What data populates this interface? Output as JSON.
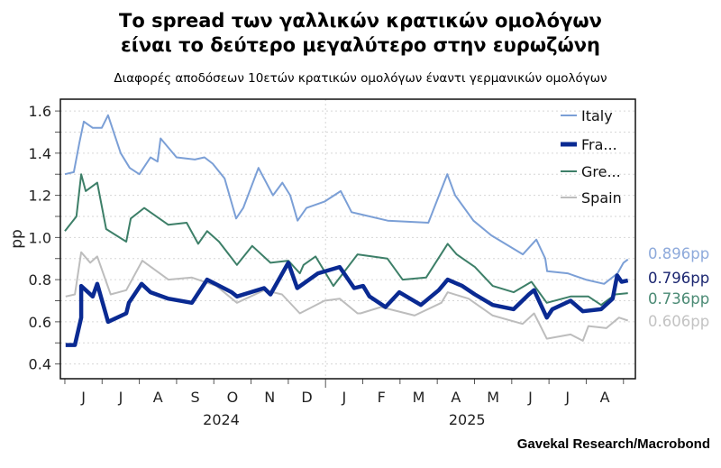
{
  "title_line1": "Το spread των γαλλικών κρατικών ομολόγων",
  "title_line2": "είναι το δεύτερο μεγαλύτερο στην ευρωζώνη",
  "subtitle": "Διαφορές αποδόσεων 10ετών κρατικών ομολόγων έναντι γερμανικών ομολόγων",
  "source": "Gavekal Research/Macrobond",
  "chart_data": {
    "type": "line",
    "title": "Το spread των γαλλικών κρατικών ομολόγων είναι το δεύτερο μεγαλύτερο στην ευρωζώνη",
    "xlabel": "",
    "ylabel": "pp",
    "x_unit": "months since 2024-06-01",
    "xlim": [
      -0.12,
      15.32
    ],
    "ylim": [
      0.33,
      1.656
    ],
    "yticks": [
      0.4,
      0.6,
      0.8,
      1.0,
      1.2,
      1.4,
      1.6
    ],
    "ytick_labels": [
      "0.4",
      "0.6",
      "0.8",
      "1.0",
      "1.2",
      "1.4",
      "1.6"
    ],
    "grid": true,
    "month_labels": [
      "J",
      "J",
      "A",
      "S",
      "O",
      "N",
      "D",
      "J",
      "F",
      "M",
      "A",
      "M",
      "J",
      "J",
      "A"
    ],
    "year_labels": [
      {
        "label": "2024",
        "month": 4.2
      },
      {
        "label": "2025",
        "month": 10.8
      }
    ],
    "legend_position": "top-right",
    "series": [
      {
        "name": "Italy",
        "legend": "Italy",
        "color": "#7b9fd6",
        "width": 2,
        "end_label": "0.896pp",
        "end_color": "#8eaadb",
        "points": [
          [
            0,
            1.3
          ],
          [
            0.24,
            1.31
          ],
          [
            0.39,
            1.45
          ],
          [
            0.51,
            1.55
          ],
          [
            0.75,
            1.52
          ],
          [
            0.99,
            1.52
          ],
          [
            1.16,
            1.58
          ],
          [
            1.5,
            1.4
          ],
          [
            1.74,
            1.33
          ],
          [
            2.0,
            1.3
          ],
          [
            2.3,
            1.38
          ],
          [
            2.49,
            1.36
          ],
          [
            2.57,
            1.47
          ],
          [
            3.0,
            1.38
          ],
          [
            3.49,
            1.37
          ],
          [
            3.75,
            1.38
          ],
          [
            3.97,
            1.35
          ],
          [
            4.29,
            1.28
          ],
          [
            4.6,
            1.09
          ],
          [
            4.79,
            1.14
          ],
          [
            5.2,
            1.33
          ],
          [
            5.59,
            1.2
          ],
          [
            5.84,
            1.26
          ],
          [
            6.05,
            1.2
          ],
          [
            6.25,
            1.08
          ],
          [
            6.49,
            1.14
          ],
          [
            6.97,
            1.17
          ],
          [
            7.41,
            1.22
          ],
          [
            7.7,
            1.12
          ],
          [
            7.94,
            1.11
          ],
          [
            8.67,
            1.08
          ],
          [
            9.76,
            1.07
          ],
          [
            10.27,
            1.3
          ],
          [
            10.48,
            1.2
          ],
          [
            10.97,
            1.08
          ],
          [
            11.45,
            1.01
          ],
          [
            12.3,
            0.92
          ],
          [
            12.66,
            0.99
          ],
          [
            12.9,
            0.9
          ],
          [
            12.95,
            0.84
          ],
          [
            13.5,
            0.83
          ],
          [
            13.99,
            0.8
          ],
          [
            14.48,
            0.78
          ],
          [
            14.84,
            0.83
          ],
          [
            15.0,
            0.88
          ],
          [
            15.12,
            0.896
          ]
        ]
      },
      {
        "name": "France",
        "legend": "Fra...",
        "color": "#0a2a92",
        "width": 4.5,
        "end_label": "0.796pp",
        "end_color": "#1b2670",
        "points": [
          [
            0.02,
            0.49
          ],
          [
            0.27,
            0.49
          ],
          [
            0.44,
            0.62
          ],
          [
            0.44,
            0.77
          ],
          [
            0.75,
            0.72
          ],
          [
            0.87,
            0.78
          ],
          [
            1.16,
            0.6
          ],
          [
            1.65,
            0.64
          ],
          [
            1.72,
            0.69
          ],
          [
            2.06,
            0.78
          ],
          [
            2.3,
            0.74
          ],
          [
            2.78,
            0.71
          ],
          [
            3.41,
            0.69
          ],
          [
            3.82,
            0.8
          ],
          [
            4.48,
            0.74
          ],
          [
            4.62,
            0.72
          ],
          [
            5.35,
            0.76
          ],
          [
            5.52,
            0.73
          ],
          [
            6.0,
            0.88
          ],
          [
            6.24,
            0.76
          ],
          [
            6.8,
            0.83
          ],
          [
            7.38,
            0.86
          ],
          [
            7.77,
            0.76
          ],
          [
            8.01,
            0.77
          ],
          [
            8.18,
            0.72
          ],
          [
            8.61,
            0.67
          ],
          [
            8.98,
            0.74
          ],
          [
            9.56,
            0.68
          ],
          [
            10.04,
            0.75
          ],
          [
            10.28,
            0.8
          ],
          [
            10.67,
            0.77
          ],
          [
            11.01,
            0.73
          ],
          [
            11.49,
            0.68
          ],
          [
            12.05,
            0.66
          ],
          [
            12.46,
            0.73
          ],
          [
            12.6,
            0.75
          ],
          [
            12.94,
            0.62
          ],
          [
            13.09,
            0.66
          ],
          [
            13.58,
            0.7
          ],
          [
            13.91,
            0.65
          ],
          [
            14.4,
            0.66
          ],
          [
            14.71,
            0.71
          ],
          [
            14.83,
            0.82
          ],
          [
            14.95,
            0.79
          ],
          [
            15.12,
            0.796
          ]
        ]
      },
      {
        "name": "Greece",
        "legend": "Gre...",
        "color": "#3d7f68",
        "width": 2,
        "end_label": "0.736pp",
        "end_color": "#4a8a74",
        "points": [
          [
            0,
            1.03
          ],
          [
            0.31,
            1.1
          ],
          [
            0.44,
            1.3
          ],
          [
            0.56,
            1.22
          ],
          [
            0.87,
            1.26
          ],
          [
            1.11,
            1.04
          ],
          [
            1.65,
            0.98
          ],
          [
            1.77,
            1.09
          ],
          [
            2.13,
            1.14
          ],
          [
            2.78,
            1.06
          ],
          [
            3.27,
            1.07
          ],
          [
            3.58,
            0.97
          ],
          [
            3.82,
            1.03
          ],
          [
            4.14,
            0.98
          ],
          [
            4.62,
            0.87
          ],
          [
            5.03,
            0.96
          ],
          [
            5.52,
            0.88
          ],
          [
            6.0,
            0.89
          ],
          [
            6.31,
            0.83
          ],
          [
            6.41,
            0.87
          ],
          [
            6.73,
            0.91
          ],
          [
            7.21,
            0.77
          ],
          [
            7.86,
            0.92
          ],
          [
            8.66,
            0.9
          ],
          [
            9.07,
            0.8
          ],
          [
            9.7,
            0.81
          ],
          [
            10.28,
            0.97
          ],
          [
            10.52,
            0.92
          ],
          [
            11.01,
            0.86
          ],
          [
            11.49,
            0.77
          ],
          [
            12.05,
            0.74
          ],
          [
            12.53,
            0.79
          ],
          [
            12.94,
            0.69
          ],
          [
            13.58,
            0.72
          ],
          [
            14.06,
            0.72
          ],
          [
            14.4,
            0.68
          ],
          [
            14.78,
            0.73
          ],
          [
            15.12,
            0.736
          ]
        ]
      },
      {
        "name": "Spain",
        "legend": "Spain",
        "color": "#bdbdbd",
        "width": 2,
        "end_label": "0.606pp",
        "end_color": "#c3c3c3",
        "points": [
          [
            0.02,
            0.72
          ],
          [
            0.27,
            0.73
          ],
          [
            0.44,
            0.93
          ],
          [
            0.68,
            0.88
          ],
          [
            0.87,
            0.91
          ],
          [
            1.23,
            0.73
          ],
          [
            1.65,
            0.75
          ],
          [
            2.08,
            0.89
          ],
          [
            2.78,
            0.8
          ],
          [
            3.41,
            0.81
          ],
          [
            4.07,
            0.77
          ],
          [
            4.62,
            0.69
          ],
          [
            5.35,
            0.75
          ],
          [
            5.83,
            0.73
          ],
          [
            6.31,
            0.64
          ],
          [
            6.97,
            0.7
          ],
          [
            7.38,
            0.71
          ],
          [
            7.86,
            0.64
          ],
          [
            7.94,
            0.64
          ],
          [
            8.49,
            0.67
          ],
          [
            9.39,
            0.63
          ],
          [
            10.11,
            0.69
          ],
          [
            10.28,
            0.74
          ],
          [
            10.84,
            0.71
          ],
          [
            11.49,
            0.63
          ],
          [
            12.29,
            0.59
          ],
          [
            12.6,
            0.64
          ],
          [
            12.94,
            0.52
          ],
          [
            13.58,
            0.54
          ],
          [
            13.91,
            0.51
          ],
          [
            14.06,
            0.58
          ],
          [
            14.54,
            0.57
          ],
          [
            14.88,
            0.62
          ],
          [
            15.12,
            0.606
          ]
        ]
      }
    ]
  }
}
